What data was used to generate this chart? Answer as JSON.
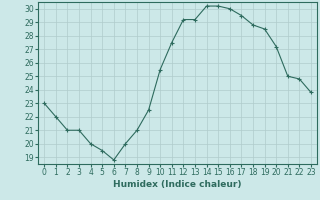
{
  "x": [
    0,
    1,
    2,
    3,
    4,
    5,
    6,
    7,
    8,
    9,
    10,
    11,
    12,
    13,
    14,
    15,
    16,
    17,
    18,
    19,
    20,
    21,
    22,
    23
  ],
  "y": [
    23.0,
    22.0,
    21.0,
    21.0,
    20.0,
    19.5,
    18.8,
    20.0,
    21.0,
    22.5,
    25.5,
    27.5,
    29.2,
    29.2,
    30.2,
    30.2,
    30.0,
    29.5,
    28.8,
    28.5,
    27.2,
    25.0,
    24.8,
    23.8
  ],
  "line_color": "#2e6b5e",
  "marker": "+",
  "marker_size": 3,
  "bg_color": "#cce8e8",
  "grid_color": "#b0cccc",
  "xlabel": "Humidex (Indice chaleur)",
  "xlim": [
    -0.5,
    23.5
  ],
  "ylim": [
    18.5,
    30.5
  ],
  "yticks": [
    19,
    20,
    21,
    22,
    23,
    24,
    25,
    26,
    27,
    28,
    29,
    30
  ],
  "xticks": [
    0,
    1,
    2,
    3,
    4,
    5,
    6,
    7,
    8,
    9,
    10,
    11,
    12,
    13,
    14,
    15,
    16,
    17,
    18,
    19,
    20,
    21,
    22,
    23
  ],
  "axis_color": "#2e6b5e",
  "tick_color": "#2e6b5e",
  "label_fontsize": 6.5,
  "tick_fontsize": 5.5
}
